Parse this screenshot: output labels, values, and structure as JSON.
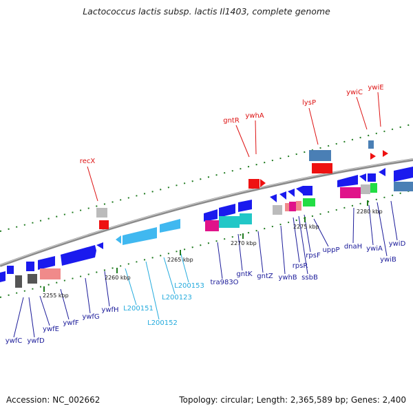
{
  "title": "Lactococcus lactis subsp. lactis Il1403, complete genome",
  "footer": {
    "accession": "Accession: NC_002662",
    "summary": "Topology: circular; Length: 2,365,589 bp; Genes: 2,400"
  },
  "colors": {
    "backbone": "#8a8a8a",
    "dots": "#1e7a1e",
    "blue": "#1a1aee",
    "cyan": "#40b8f0",
    "red": "#ee1111",
    "steel": "#4a7fb5",
    "magenta": "#e0138a",
    "teal": "#22c7c7",
    "pink": "#f08a8a",
    "green": "#22dd44",
    "gray": "#bbbbbb",
    "darkgray": "#555555",
    "label_red": "#dd1111",
    "label_blue": "#1a1a99",
    "label_cyan": "#22aadd"
  },
  "scale_ticks": [
    {
      "label": "2255 kbp"
    },
    {
      "label": "2260 kbp"
    },
    {
      "label": "2265 kbp"
    },
    {
      "label": "2270 kbp"
    },
    {
      "label": "2275 kbp"
    },
    {
      "label": "2280 kbp"
    }
  ],
  "top_labels": [
    {
      "name": "recX",
      "color": "red"
    },
    {
      "name": "gntR",
      "color": "red"
    },
    {
      "name": "ywhA",
      "color": "red"
    },
    {
      "name": "lysP",
      "color": "red"
    },
    {
      "name": "ywiC",
      "color": "red"
    },
    {
      "name": "ywiE",
      "color": "red"
    }
  ],
  "bottom_labels": [
    {
      "name": "ywfC",
      "color": "blue"
    },
    {
      "name": "ywfD",
      "color": "blue"
    },
    {
      "name": "ywfE",
      "color": "blue"
    },
    {
      "name": "ywfF",
      "color": "blue"
    },
    {
      "name": "ywfG",
      "color": "blue"
    },
    {
      "name": "ywfH",
      "color": "blue"
    },
    {
      "name": "L200151",
      "color": "cyan"
    },
    {
      "name": "L200152",
      "color": "cyan"
    },
    {
      "name": "L200123",
      "color": "cyan"
    },
    {
      "name": "L200153",
      "color": "cyan"
    },
    {
      "name": "tra983O",
      "color": "blue"
    },
    {
      "name": "gntK",
      "color": "blue"
    },
    {
      "name": "gntZ",
      "color": "blue"
    },
    {
      "name": "ywhB",
      "color": "blue"
    },
    {
      "name": "rpsR",
      "color": "blue"
    },
    {
      "name": "ssbB",
      "color": "blue"
    },
    {
      "name": "rpsF",
      "color": "blue"
    },
    {
      "name": "uppP",
      "color": "blue"
    },
    {
      "name": "dnaH",
      "color": "blue"
    },
    {
      "name": "ywiA",
      "color": "blue"
    },
    {
      "name": "ywiB",
      "color": "blue"
    },
    {
      "name": "ywiD",
      "color": "blue"
    }
  ]
}
